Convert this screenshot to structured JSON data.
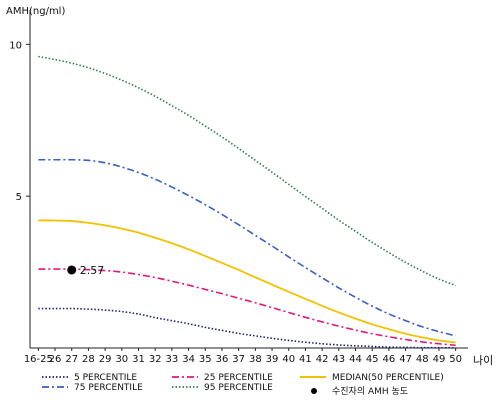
{
  "chart_data": {
    "type": "line",
    "ylabel": "AMH(ng/ml)",
    "xlabel": "나이",
    "ylim": [
      0,
      11
    ],
    "yticks": [
      5,
      10
    ],
    "categories": [
      "16-25",
      "26",
      "27",
      "28",
      "29",
      "30",
      "31",
      "32",
      "33",
      "34",
      "35",
      "36",
      "37",
      "38",
      "39",
      "40",
      "41",
      "42",
      "43",
      "44",
      "45",
      "46",
      "47",
      "48",
      "49",
      "50"
    ],
    "series": [
      {
        "name": "5 PERCENTILE",
        "color": "#1f1f7a",
        "dash": "1.5,2",
        "values": [
          1.3,
          1.3,
          1.3,
          1.28,
          1.25,
          1.2,
          1.12,
          1.0,
          0.9,
          0.8,
          0.68,
          0.58,
          0.48,
          0.4,
          0.32,
          0.25,
          0.19,
          0.14,
          0.1,
          0.07,
          0.05,
          0.03,
          0.02,
          0.01,
          0.01,
          0.0
        ]
      },
      {
        "name": "25 PERCENTILE",
        "color": "#e0187a",
        "dash": "7,3,2,3",
        "values": [
          2.6,
          2.6,
          2.6,
          2.58,
          2.55,
          2.5,
          2.42,
          2.32,
          2.2,
          2.07,
          1.93,
          1.79,
          1.64,
          1.49,
          1.33,
          1.17,
          1.01,
          0.86,
          0.72,
          0.59,
          0.47,
          0.37,
          0.28,
          0.2,
          0.14,
          0.09
        ]
      },
      {
        "name": "MEDIAN(50 PERCENTILE)",
        "color": "#f2c200",
        "dash": "",
        "values": [
          4.2,
          4.2,
          4.18,
          4.12,
          4.04,
          3.93,
          3.8,
          3.63,
          3.45,
          3.25,
          3.03,
          2.8,
          2.57,
          2.33,
          2.09,
          1.85,
          1.62,
          1.39,
          1.17,
          0.97,
          0.78,
          0.62,
          0.47,
          0.35,
          0.25,
          0.18
        ]
      },
      {
        "name": "75 PERCENTILE",
        "color": "#3a5fc4",
        "dash": "7,3,2,3",
        "values": [
          6.2,
          6.2,
          6.2,
          6.18,
          6.1,
          5.96,
          5.78,
          5.56,
          5.3,
          5.02,
          4.72,
          4.4,
          4.06,
          3.71,
          3.36,
          3.0,
          2.65,
          2.31,
          1.98,
          1.67,
          1.38,
          1.12,
          0.9,
          0.7,
          0.54,
          0.4
        ]
      },
      {
        "name": "95 PERCENTILE",
        "color": "#2e7d4f",
        "dash": "1.5,2",
        "values": [
          9.6,
          9.5,
          9.38,
          9.23,
          9.04,
          8.82,
          8.57,
          8.29,
          7.98,
          7.66,
          7.31,
          6.95,
          6.57,
          6.18,
          5.79,
          5.39,
          4.99,
          4.6,
          4.21,
          3.84,
          3.48,
          3.14,
          2.82,
          2.53,
          2.27,
          2.06
        ]
      }
    ],
    "marker": {
      "label": "수진자의 AMH 농도",
      "x": "27",
      "value": 2.57,
      "value_label": "2.57",
      "color": "#000000"
    }
  }
}
